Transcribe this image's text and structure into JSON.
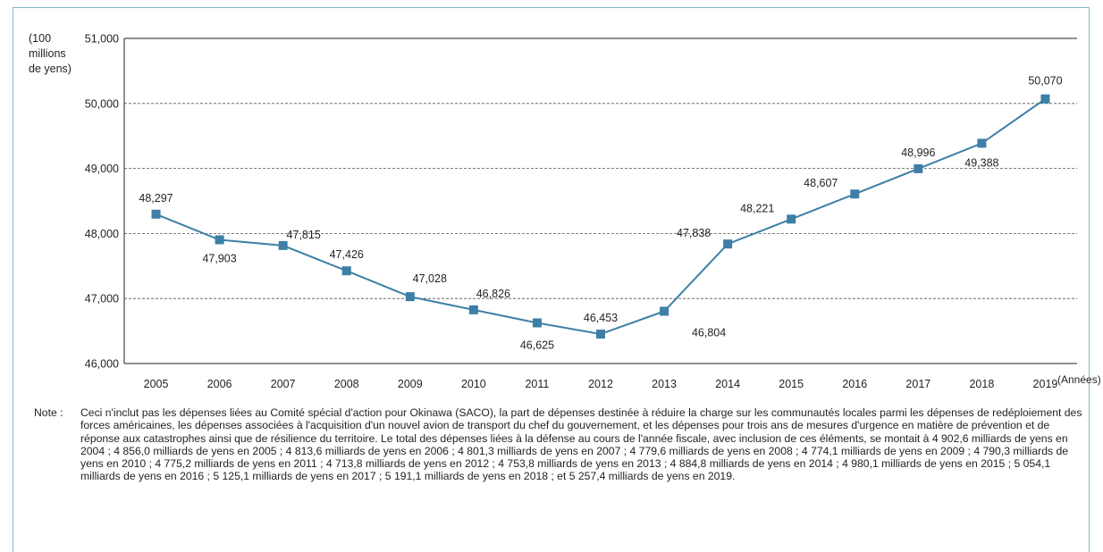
{
  "chart_data": {
    "type": "line",
    "title": "",
    "ylabel": "(100 millions de yens)",
    "ylabel_lines": [
      "(100",
      "millions",
      "de yens)"
    ],
    "xlabel": "(Années)",
    "x": [
      "2005",
      "2006",
      "2007",
      "2008",
      "2009",
      "2010",
      "2011",
      "2012",
      "2013",
      "2014",
      "2015",
      "2016",
      "2017",
      "2018",
      "2019"
    ],
    "series": [
      {
        "values": [
          48297,
          47903,
          47815,
          47426,
          47028,
          46826,
          46625,
          46453,
          46804,
          47838,
          48221,
          48607,
          48996,
          49388,
          50070
        ],
        "labels": [
          "48,297",
          "47,903",
          "47,815",
          "47,426",
          "47,028",
          "46,826",
          "46,625",
          "46,453",
          "46,804",
          "47,838",
          "48,221",
          "48,607",
          "48,996",
          "49,388",
          "50,070"
        ],
        "color": "#3d7fa6"
      }
    ],
    "ylim": [
      46000,
      51000
    ],
    "yticks": [
      46000,
      47000,
      48000,
      49000,
      50000,
      51000
    ],
    "ytick_labels": [
      "46,000",
      "47,000",
      "48,000",
      "49,000",
      "50,000",
      "51,000"
    ],
    "grid": "horizontal dashed"
  },
  "note": {
    "label": "Note :",
    "text": "Ceci n'inclut pas les dépenses liées au Comité spécial d'action pour Okinawa (SACO), la part de dépenses destinée à réduire la charge sur les communautés locales parmi les dépenses de redéploiement des forces américaines, les dépenses associées à l'acquisition d'un nouvel avion de transport du chef du gouvernement, et les dépenses pour trois ans de mesures d'urgence en matière de prévention et de réponse aux catastrophes ainsi que de résilience du territoire. Le total des dépenses liées à la défense au cours de l'année fiscale, avec inclusion de ces éléments, se montait à 4 902,6 milliards de yens en 2004 ; 4 856,0 milliards de yens en 2005 ; 4 813,6 milliards de yens en 2006 ; 4 801,3 milliards de yens en 2007 ; 4 779,6 milliards de yens en 2008 ; 4 774,1 milliards de yens en 2009 ; 4 790,3 milliards de yens en 2010 ; 4 775,2 milliards de yens en 2011 ; 4 713,8 milliards de yens en 2012 ; 4 753,8 milliards de yens en 2013 ; 4 884,8 milliards de yens en 2014 ; 4 980,1 milliards de yens en 2015 ; 5 054,1 milliards de yens en 2016 ; 5 125,1 milliards de yens en 2017 ; 5 191,1 milliards de yens en 2018 ; et 5 257,4 milliards de yens en 2019."
  }
}
